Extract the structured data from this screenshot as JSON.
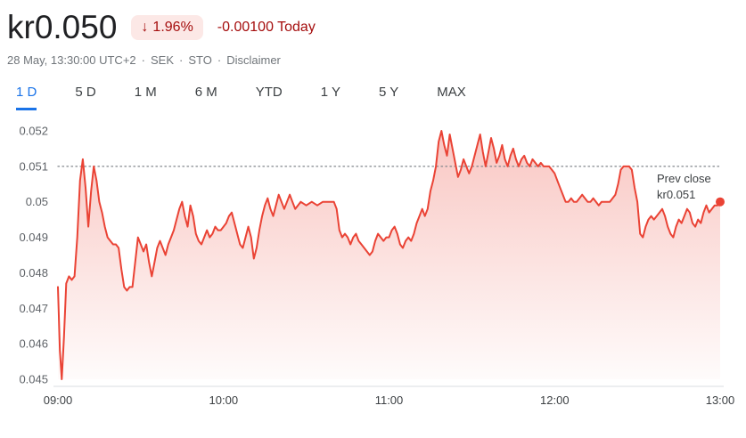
{
  "header": {
    "price": "kr0.050",
    "badge_arrow": "↓",
    "change_badge": "1.96%",
    "change_text": "-0.00100 Today",
    "meta": {
      "datetime": "28 May, 13:30:00 UTC+2",
      "currency": "SEK",
      "exchange": "STO",
      "disclaimer": "Disclaimer",
      "separator": "·"
    }
  },
  "tabs": [
    {
      "label": "1 D",
      "active": true
    },
    {
      "label": "5 D",
      "active": false
    },
    {
      "label": "1 M",
      "active": false
    },
    {
      "label": "6 M",
      "active": false
    },
    {
      "label": "YTD",
      "active": false
    },
    {
      "label": "1 Y",
      "active": false
    },
    {
      "label": "5 Y",
      "active": false
    },
    {
      "label": "MAX",
      "active": false
    }
  ],
  "colors": {
    "price_text": "#202124",
    "negative_red": "#a50e0e",
    "badge_bg": "#fce8e6",
    "line_red": "#ea4335",
    "active_tab_blue": "#1a73e8",
    "axis_gray": "#5f6368"
  },
  "chart_data": {
    "type": "line",
    "x_unit": "minutes since 09:00",
    "xlim": [
      0,
      240
    ],
    "ylim": [
      0.045,
      0.052
    ],
    "x_ticks": [
      "09:00",
      "10:00",
      "11:00",
      "12:00",
      "13:00"
    ],
    "y_ticks": [
      "0.052",
      "0.051",
      "0.05",
      "0.049",
      "0.048",
      "0.047",
      "0.046",
      "0.045"
    ],
    "prev_close": 0.051,
    "prev_close_label": [
      "Prev close",
      "kr0.051"
    ],
    "last_price": 0.05,
    "line_color": "#ea4335",
    "points": [
      [
        0,
        0.0476
      ],
      [
        0.7,
        0.0458
      ],
      [
        1.4,
        0.045
      ],
      [
        2.2,
        0.0462
      ],
      [
        3,
        0.0477
      ],
      [
        4,
        0.0479
      ],
      [
        5,
        0.0478
      ],
      [
        6,
        0.0479
      ],
      [
        7,
        0.049
      ],
      [
        8,
        0.0506
      ],
      [
        9,
        0.0512
      ],
      [
        10,
        0.0504
      ],
      [
        11,
        0.0493
      ],
      [
        12,
        0.0503
      ],
      [
        13,
        0.051
      ],
      [
        14,
        0.0506
      ],
      [
        15,
        0.05
      ],
      [
        16,
        0.0497
      ],
      [
        17,
        0.0493
      ],
      [
        18,
        0.049
      ],
      [
        19,
        0.0489
      ],
      [
        20,
        0.0488
      ],
      [
        21,
        0.0488
      ],
      [
        22,
        0.0487
      ],
      [
        23,
        0.0481
      ],
      [
        24,
        0.0476
      ],
      [
        25,
        0.0475
      ],
      [
        26,
        0.0476
      ],
      [
        27,
        0.0476
      ],
      [
        28,
        0.0483
      ],
      [
        29,
        0.049
      ],
      [
        30,
        0.0488
      ],
      [
        31,
        0.0486
      ],
      [
        32,
        0.0488
      ],
      [
        33,
        0.0483
      ],
      [
        34,
        0.0479
      ],
      [
        35,
        0.0483
      ],
      [
        36,
        0.0487
      ],
      [
        37,
        0.0489
      ],
      [
        38,
        0.0487
      ],
      [
        39,
        0.0485
      ],
      [
        40,
        0.0488
      ],
      [
        41,
        0.049
      ],
      [
        42,
        0.0492
      ],
      [
        43,
        0.0495
      ],
      [
        44,
        0.0498
      ],
      [
        45,
        0.05
      ],
      [
        46,
        0.0496
      ],
      [
        47,
        0.0493
      ],
      [
        48,
        0.0499
      ],
      [
        49,
        0.0496
      ],
      [
        50,
        0.0491
      ],
      [
        51,
        0.0489
      ],
      [
        52,
        0.0488
      ],
      [
        53,
        0.049
      ],
      [
        54,
        0.0492
      ],
      [
        55,
        0.049
      ],
      [
        56,
        0.0491
      ],
      [
        57,
        0.0493
      ],
      [
        58,
        0.0492
      ],
      [
        59,
        0.0492
      ],
      [
        60,
        0.0493
      ],
      [
        61,
        0.0494
      ],
      [
        62,
        0.0496
      ],
      [
        63,
        0.0497
      ],
      [
        64,
        0.0494
      ],
      [
        65,
        0.0491
      ],
      [
        66,
        0.0488
      ],
      [
        67,
        0.0487
      ],
      [
        68,
        0.049
      ],
      [
        69,
        0.0493
      ],
      [
        70,
        0.049
      ],
      [
        71,
        0.0484
      ],
      [
        72,
        0.0487
      ],
      [
        73,
        0.0492
      ],
      [
        74,
        0.0496
      ],
      [
        75,
        0.0499
      ],
      [
        76,
        0.0501
      ],
      [
        77,
        0.0498
      ],
      [
        78,
        0.0496
      ],
      [
        79,
        0.0499
      ],
      [
        80,
        0.0502
      ],
      [
        81,
        0.05
      ],
      [
        82,
        0.0498
      ],
      [
        83,
        0.05
      ],
      [
        84,
        0.0502
      ],
      [
        85,
        0.05
      ],
      [
        86,
        0.0498
      ],
      [
        87,
        0.0499
      ],
      [
        88,
        0.05
      ],
      [
        90,
        0.0499
      ],
      [
        92,
        0.05
      ],
      [
        94,
        0.0499
      ],
      [
        96,
        0.05
      ],
      [
        98,
        0.05
      ],
      [
        100,
        0.05
      ],
      [
        101,
        0.0498
      ],
      [
        102,
        0.0492
      ],
      [
        103,
        0.049
      ],
      [
        104,
        0.0491
      ],
      [
        105,
        0.049
      ],
      [
        106,
        0.0488
      ],
      [
        107,
        0.049
      ],
      [
        108,
        0.0491
      ],
      [
        109,
        0.0489
      ],
      [
        110,
        0.0488
      ],
      [
        111,
        0.0487
      ],
      [
        112,
        0.0486
      ],
      [
        113,
        0.0485
      ],
      [
        114,
        0.0486
      ],
      [
        115,
        0.0489
      ],
      [
        116,
        0.0491
      ],
      [
        117,
        0.049
      ],
      [
        118,
        0.0489
      ],
      [
        119,
        0.049
      ],
      [
        120,
        0.049
      ],
      [
        121,
        0.0492
      ],
      [
        122,
        0.0493
      ],
      [
        123,
        0.0491
      ],
      [
        124,
        0.0488
      ],
      [
        125,
        0.0487
      ],
      [
        126,
        0.0489
      ],
      [
        127,
        0.049
      ],
      [
        128,
        0.0489
      ],
      [
        129,
        0.0491
      ],
      [
        130,
        0.0494
      ],
      [
        131,
        0.0496
      ],
      [
        132,
        0.0498
      ],
      [
        133,
        0.0496
      ],
      [
        134,
        0.0498
      ],
      [
        135,
        0.0503
      ],
      [
        136,
        0.0506
      ],
      [
        137,
        0.051
      ],
      [
        138,
        0.0517
      ],
      [
        139,
        0.052
      ],
      [
        140,
        0.0516
      ],
      [
        141,
        0.0513
      ],
      [
        142,
        0.0519
      ],
      [
        143,
        0.0515
      ],
      [
        144,
        0.0511
      ],
      [
        145,
        0.0507
      ],
      [
        146,
        0.0509
      ],
      [
        147,
        0.0512
      ],
      [
        148,
        0.051
      ],
      [
        149,
        0.0508
      ],
      [
        150,
        0.051
      ],
      [
        151,
        0.0513
      ],
      [
        152,
        0.0516
      ],
      [
        153,
        0.0519
      ],
      [
        154,
        0.0514
      ],
      [
        155,
        0.051
      ],
      [
        156,
        0.0514
      ],
      [
        157,
        0.0518
      ],
      [
        158,
        0.0515
      ],
      [
        159,
        0.0511
      ],
      [
        160,
        0.0513
      ],
      [
        161,
        0.0516
      ],
      [
        162,
        0.0512
      ],
      [
        163,
        0.051
      ],
      [
        164,
        0.0513
      ],
      [
        165,
        0.0515
      ],
      [
        166,
        0.0512
      ],
      [
        167,
        0.051
      ],
      [
        168,
        0.0512
      ],
      [
        169,
        0.0513
      ],
      [
        170,
        0.0511
      ],
      [
        171,
        0.051
      ],
      [
        172,
        0.0512
      ],
      [
        173,
        0.0511
      ],
      [
        174,
        0.051
      ],
      [
        175,
        0.0511
      ],
      [
        176,
        0.051
      ],
      [
        177,
        0.051
      ],
      [
        178,
        0.051
      ],
      [
        179,
        0.0509
      ],
      [
        180,
        0.0508
      ],
      [
        181,
        0.0506
      ],
      [
        182,
        0.0504
      ],
      [
        183,
        0.0502
      ],
      [
        184,
        0.05
      ],
      [
        185,
        0.05
      ],
      [
        186,
        0.0501
      ],
      [
        187,
        0.05
      ],
      [
        188,
        0.05
      ],
      [
        189,
        0.0501
      ],
      [
        190,
        0.0502
      ],
      [
        191,
        0.0501
      ],
      [
        192,
        0.05
      ],
      [
        193,
        0.05
      ],
      [
        194,
        0.0501
      ],
      [
        195,
        0.05
      ],
      [
        196,
        0.0499
      ],
      [
        197,
        0.05
      ],
      [
        198,
        0.05
      ],
      [
        199,
        0.05
      ],
      [
        200,
        0.05
      ],
      [
        201,
        0.0501
      ],
      [
        202,
        0.0502
      ],
      [
        203,
        0.0505
      ],
      [
        204,
        0.0509
      ],
      [
        205,
        0.051
      ],
      [
        206,
        0.051
      ],
      [
        207,
        0.051
      ],
      [
        208,
        0.0509
      ],
      [
        209,
        0.0504
      ],
      [
        210,
        0.05
      ],
      [
        211,
        0.0491
      ],
      [
        212,
        0.049
      ],
      [
        213,
        0.0493
      ],
      [
        214,
        0.0495
      ],
      [
        215,
        0.0496
      ],
      [
        216,
        0.0495
      ],
      [
        217,
        0.0496
      ],
      [
        218,
        0.0497
      ],
      [
        219,
        0.0498
      ],
      [
        220,
        0.0496
      ],
      [
        221,
        0.0493
      ],
      [
        222,
        0.0491
      ],
      [
        223,
        0.049
      ],
      [
        224,
        0.0493
      ],
      [
        225,
        0.0495
      ],
      [
        226,
        0.0494
      ],
      [
        227,
        0.0496
      ],
      [
        228,
        0.0498
      ],
      [
        229,
        0.0497
      ],
      [
        230,
        0.0494
      ],
      [
        231,
        0.0493
      ],
      [
        232,
        0.0495
      ],
      [
        233,
        0.0494
      ],
      [
        234,
        0.0497
      ],
      [
        235,
        0.0499
      ],
      [
        236,
        0.0497
      ],
      [
        237,
        0.0498
      ],
      [
        238,
        0.0499
      ],
      [
        239,
        0.0499
      ],
      [
        240,
        0.05
      ]
    ]
  }
}
